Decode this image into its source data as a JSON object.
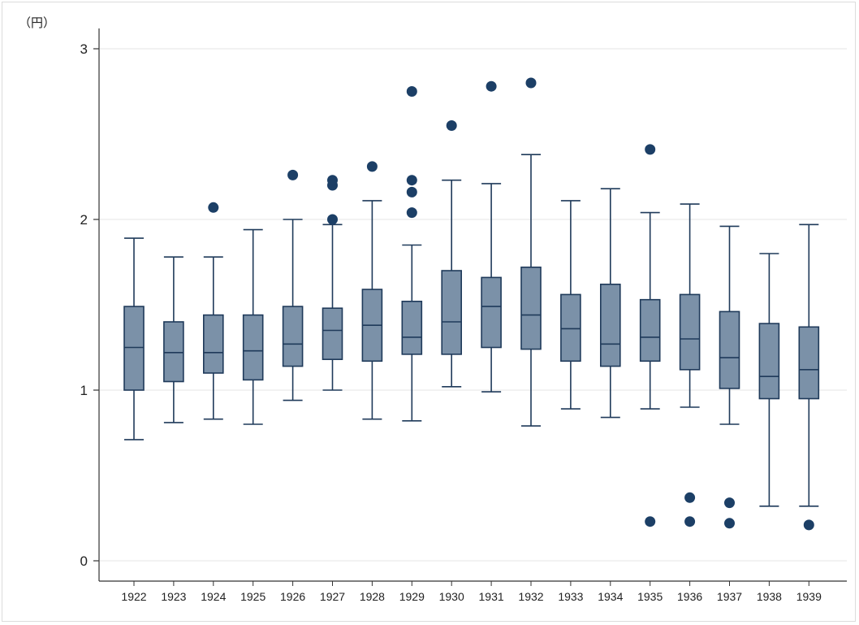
{
  "chart_data": {
    "type": "box",
    "ylabel": "（円）",
    "ylim": [
      0,
      3
    ],
    "yticks": [
      "0",
      "1",
      "2",
      "3"
    ],
    "grid": true,
    "legend": "none",
    "colors": {
      "box_fill": "#7b91a8",
      "box_edge": "#1f3a5a",
      "outlier": "#1c3f66",
      "grid": "#e6e6e6",
      "axis": "#333333"
    },
    "categories": [
      "1922",
      "1923",
      "1924",
      "1925",
      "1926",
      "1927",
      "1928",
      "1929",
      "1930",
      "1931",
      "1932",
      "1933",
      "1934",
      "1935",
      "1936",
      "1937",
      "1938",
      "1939"
    ],
    "boxes": [
      {
        "year": "1922",
        "whisker_low": 0.71,
        "q1": 1.0,
        "median": 1.25,
        "q3": 1.49,
        "whisker_high": 1.89,
        "outliers": []
      },
      {
        "year": "1923",
        "whisker_low": 0.81,
        "q1": 1.05,
        "median": 1.22,
        "q3": 1.4,
        "whisker_high": 1.78,
        "outliers": []
      },
      {
        "year": "1924",
        "whisker_low": 0.83,
        "q1": 1.1,
        "median": 1.22,
        "q3": 1.44,
        "whisker_high": 1.78,
        "outliers": [
          2.07
        ]
      },
      {
        "year": "1925",
        "whisker_low": 0.8,
        "q1": 1.06,
        "median": 1.23,
        "q3": 1.44,
        "whisker_high": 1.94,
        "outliers": []
      },
      {
        "year": "1926",
        "whisker_low": 0.94,
        "q1": 1.14,
        "median": 1.27,
        "q3": 1.49,
        "whisker_high": 2.0,
        "outliers": [
          2.26
        ]
      },
      {
        "year": "1927",
        "whisker_low": 1.0,
        "q1": 1.18,
        "median": 1.35,
        "q3": 1.48,
        "whisker_high": 1.97,
        "outliers": [
          2.0,
          2.2,
          2.23
        ]
      },
      {
        "year": "1928",
        "whisker_low": 0.83,
        "q1": 1.17,
        "median": 1.38,
        "q3": 1.59,
        "whisker_high": 2.11,
        "outliers": [
          2.31
        ]
      },
      {
        "year": "1929",
        "whisker_low": 0.82,
        "q1": 1.21,
        "median": 1.31,
        "q3": 1.52,
        "whisker_high": 1.85,
        "outliers": [
          2.04,
          2.16,
          2.23,
          2.75
        ]
      },
      {
        "year": "1930",
        "whisker_low": 1.02,
        "q1": 1.21,
        "median": 1.4,
        "q3": 1.7,
        "whisker_high": 2.23,
        "outliers": [
          2.55
        ]
      },
      {
        "year": "1931",
        "whisker_low": 0.99,
        "q1": 1.25,
        "median": 1.49,
        "q3": 1.66,
        "whisker_high": 2.21,
        "outliers": [
          2.78
        ]
      },
      {
        "year": "1932",
        "whisker_low": 0.79,
        "q1": 1.24,
        "median": 1.44,
        "q3": 1.72,
        "whisker_high": 2.38,
        "outliers": [
          2.8
        ]
      },
      {
        "year": "1933",
        "whisker_low": 0.89,
        "q1": 1.17,
        "median": 1.36,
        "q3": 1.56,
        "whisker_high": 2.11,
        "outliers": []
      },
      {
        "year": "1934",
        "whisker_low": 0.84,
        "q1": 1.14,
        "median": 1.27,
        "q3": 1.62,
        "whisker_high": 2.18,
        "outliers": []
      },
      {
        "year": "1935",
        "whisker_low": 0.89,
        "q1": 1.17,
        "median": 1.31,
        "q3": 1.53,
        "whisker_high": 2.04,
        "outliers": [
          0.23,
          2.41
        ]
      },
      {
        "year": "1936",
        "whisker_low": 0.9,
        "q1": 1.12,
        "median": 1.3,
        "q3": 1.56,
        "whisker_high": 2.09,
        "outliers": [
          0.23,
          0.37
        ]
      },
      {
        "year": "1937",
        "whisker_low": 0.8,
        "q1": 1.01,
        "median": 1.19,
        "q3": 1.46,
        "whisker_high": 1.96,
        "outliers": [
          0.22,
          0.34
        ]
      },
      {
        "year": "1938",
        "whisker_low": 0.32,
        "q1": 0.95,
        "median": 1.08,
        "q3": 1.39,
        "whisker_high": 1.8,
        "outliers": []
      },
      {
        "year": "1939",
        "whisker_low": 0.32,
        "q1": 0.95,
        "median": 1.12,
        "q3": 1.37,
        "whisker_high": 1.97,
        "outliers": [
          0.21
        ]
      }
    ]
  }
}
